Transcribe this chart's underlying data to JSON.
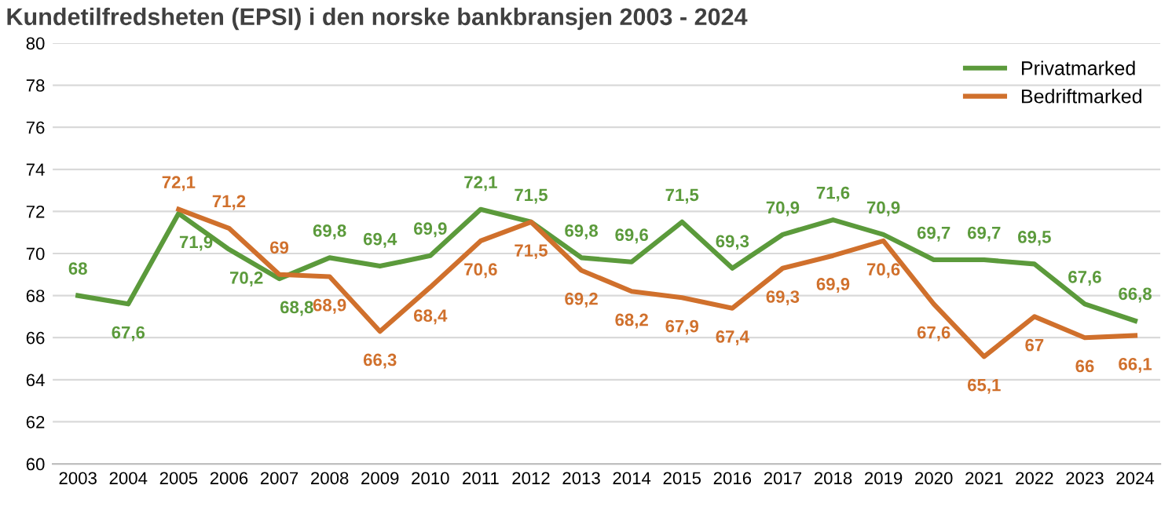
{
  "chart_data": {
    "type": "line",
    "title": "Kundetilfredsheten (EPSI) i den norske bankbransjen 2003 - 2024",
    "categories": [
      "2003",
      "2004",
      "2005",
      "2006",
      "2007",
      "2008",
      "2009",
      "2010",
      "2011",
      "2012",
      "2013",
      "2014",
      "2015",
      "2016",
      "2017",
      "2018",
      "2019",
      "2020",
      "2021",
      "2022",
      "2023",
      "2024"
    ],
    "series": [
      {
        "name": "Privatmarked",
        "color": "#5b9a3b",
        "values": [
          68,
          67.6,
          71.9,
          70.2,
          68.8,
          69.8,
          69.4,
          69.9,
          72.1,
          71.5,
          69.8,
          69.6,
          71.5,
          69.3,
          70.9,
          71.6,
          70.9,
          69.7,
          69.7,
          69.5,
          67.6,
          66.8
        ],
        "value_labels": [
          "68",
          "67,6",
          "71,9",
          "70,2",
          "68,8",
          "69,8",
          "69,4",
          "69,9",
          "72,1",
          "71,5",
          "69,8",
          "69,6",
          "71,5",
          "69,3",
          "70,9",
          "71,6",
          "70,9",
          "69,7",
          "69,7",
          "69,5",
          "67,6",
          "66,8"
        ]
      },
      {
        "name": "Bedriftmarked",
        "color": "#d0702c",
        "values": [
          null,
          null,
          72.1,
          71.2,
          69,
          68.9,
          66.3,
          68.4,
          70.6,
          71.5,
          69.2,
          68.2,
          67.9,
          67.4,
          69.3,
          69.9,
          70.6,
          67.6,
          65.1,
          67,
          66,
          66.1
        ],
        "value_labels": [
          null,
          null,
          "72,1",
          "71,2",
          "69",
          "68,9",
          "66,3",
          "68,4",
          "70,6",
          "71,5",
          "69,2",
          "68,2",
          "67,9",
          "67,4",
          "69,3",
          "69,9",
          "70,6",
          "67,6",
          "65,1",
          "67",
          "66",
          "66,1"
        ]
      }
    ],
    "ylim": [
      60,
      80
    ],
    "yticks": [
      60,
      62,
      64,
      66,
      68,
      70,
      72,
      74,
      76,
      78,
      80
    ],
    "grid": "y",
    "legend": "top right",
    "line_style": "solid",
    "marker": "none"
  }
}
